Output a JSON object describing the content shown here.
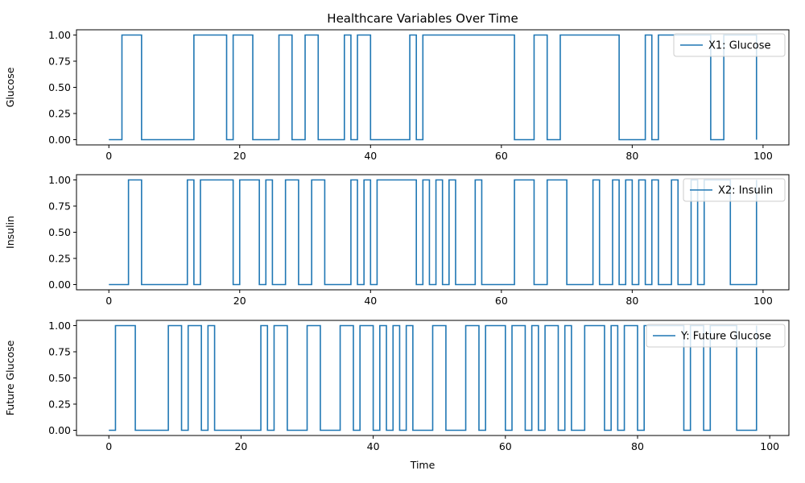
{
  "chart_data": {
    "type": "line",
    "title": "Healthcare Variables Over Time",
    "xlabel": "Time",
    "x_ticks": [
      0,
      20,
      40,
      60,
      80,
      100
    ],
    "y_ticks": [
      "0.00",
      "0.25",
      "0.50",
      "0.75",
      "1.00"
    ],
    "y_tick_values": [
      0,
      0.25,
      0.5,
      0.75,
      1.0
    ],
    "ylim": [
      -0.05,
      1.05
    ],
    "grid": false,
    "legend_placement": "top-right",
    "line_color": "#1f77b4",
    "line_style": "steps-post",
    "panels": [
      {
        "ylabel": "Glucose",
        "xlim": [
          -4.95,
          103.95
        ],
        "series": {
          "name": "X1: Glucose",
          "x_start": 0,
          "x_end": 99,
          "initial_value": 0,
          "transitions": [
            2,
            5,
            13,
            18,
            19,
            22,
            26,
            28,
            30,
            32,
            36,
            37,
            38,
            40,
            46,
            47,
            48,
            62,
            65,
            67,
            69,
            78,
            82,
            83,
            84,
            92,
            94,
            99
          ]
        }
      },
      {
        "ylabel": "Insulin",
        "xlim": [
          -4.95,
          103.95
        ],
        "series": {
          "name": "X2: Insulin",
          "x_start": 0,
          "x_end": 99,
          "initial_value": 0,
          "transitions": [
            3,
            5,
            12,
            13,
            14,
            19,
            20,
            23,
            24,
            25,
            27,
            29,
            31,
            33,
            37,
            38,
            39,
            40,
            41,
            47,
            48,
            49,
            50,
            51,
            52,
            53,
            56,
            57,
            62,
            65,
            67,
            70,
            74,
            75,
            77,
            78,
            79,
            80,
            81,
            82,
            83,
            84,
            86,
            87,
            89,
            90,
            91,
            95,
            99
          ]
        }
      },
      {
        "ylabel": "Future Glucose",
        "xlim": [
          -4.9,
          102.9
        ],
        "series": {
          "name": "Y: Future Glucose",
          "x_start": 0,
          "x_end": 98,
          "initial_value": 0,
          "transitions": [
            1,
            4,
            9,
            11,
            12,
            14,
            15,
            16,
            23,
            24,
            25,
            27,
            30,
            32,
            35,
            37,
            38,
            40,
            41,
            42,
            43,
            44,
            45,
            46,
            49,
            51,
            54,
            56,
            57,
            60,
            61,
            63,
            64,
            65,
            66,
            68,
            69,
            70,
            72,
            75,
            76,
            77,
            78,
            80,
            81,
            87,
            88,
            90,
            91,
            95,
            98
          ]
        }
      }
    ]
  }
}
